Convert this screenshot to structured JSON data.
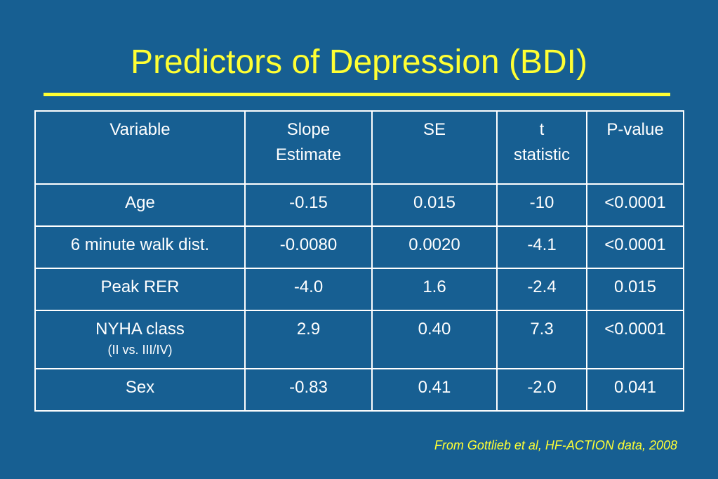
{
  "slide": {
    "title": "Predictors of Depression (BDI)",
    "source": "From Gottlieb et al, HF-ACTION data, 2008",
    "colors": {
      "background": "#175f92",
      "accent": "#ffff33",
      "text": "#ffffff"
    }
  },
  "table": {
    "headers": {
      "variable": "Variable",
      "slope_line1": "Slope",
      "slope_line2": "Estimate",
      "se": "SE",
      "t_line1": "t",
      "t_line2": "statistic",
      "p": "P-value"
    },
    "rows": [
      {
        "variable": "Age",
        "slope": "-0.15",
        "se": "0.015",
        "t": "-10",
        "p": "<0.0001"
      },
      {
        "variable": "6 minute walk dist.",
        "slope": "-0.0080",
        "se": "0.0020",
        "t": "-4.1",
        "p": "<0.0001"
      },
      {
        "variable": "Peak RER",
        "slope": "-4.0",
        "se": "1.6",
        "t": "-2.4",
        "p": "0.015"
      },
      {
        "variable": "NYHA class",
        "variable_sub": "(II vs. III/IV)",
        "slope": "2.9",
        "se": "0.40",
        "t": "7.3",
        "p": "<0.0001"
      },
      {
        "variable": "Sex",
        "slope": "-0.83",
        "se": "0.41",
        "t": "-2.0",
        "p": "0.041"
      }
    ]
  }
}
